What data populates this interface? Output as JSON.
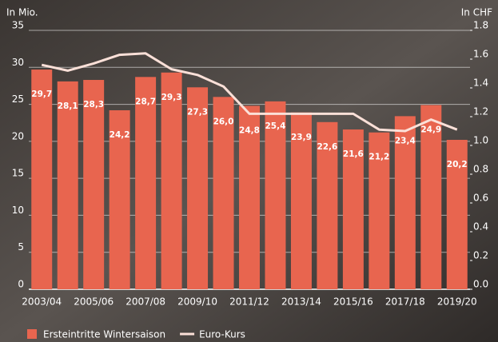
{
  "chart_data": {
    "type": "bar",
    "y_label": "In Mio.",
    "y2_label": "In CHF",
    "categories": [
      "2003/04",
      null,
      "2005/06",
      null,
      "2007/08",
      null,
      "2009/10",
      null,
      "2011/12",
      null,
      "2013/14",
      null,
      "2015/16",
      null,
      "2017/18",
      null,
      "2019/20"
    ],
    "series": [
      {
        "name": "Ersteintritte Wintersaison",
        "type": "bar",
        "color": "#e8654f",
        "values": [
          29.7,
          28.1,
          28.3,
          24.2,
          28.7,
          29.3,
          27.3,
          26.0,
          24.8,
          25.4,
          23.9,
          22.6,
          21.6,
          21.2,
          23.4,
          24.9,
          20.2
        ],
        "value_labels": [
          "29,7",
          "28,1",
          "28,3",
          "24,2",
          "28,7",
          "29,3",
          "27,3",
          "26,0",
          "24,8",
          "25,4",
          "23,9",
          "22,6",
          "21,6",
          "21,2",
          "23,4",
          "24,9",
          "20,2"
        ]
      },
      {
        "name": "Euro-Kurs",
        "type": "line",
        "axis": "y2",
        "color": "#fbe0d8",
        "values": [
          1.56,
          1.52,
          1.57,
          1.63,
          1.64,
          1.53,
          1.49,
          1.41,
          1.22,
          1.22,
          1.22,
          1.22,
          1.22,
          1.11,
          1.1,
          1.18,
          1.11
        ]
      }
    ],
    "ylim": [
      0,
      35
    ],
    "yticks": [
      0,
      5,
      10,
      15,
      20,
      25,
      30,
      35
    ],
    "y2lim": [
      0,
      1.8
    ],
    "y2ticks": [
      {
        "value": 0,
        "label": "0.0"
      },
      0.2,
      0.4,
      0.6,
      0.8,
      {
        "value": 1,
        "label": "1.0"
      },
      1.2,
      1.4,
      1.6,
      1.8
    ],
    "grid": true
  }
}
